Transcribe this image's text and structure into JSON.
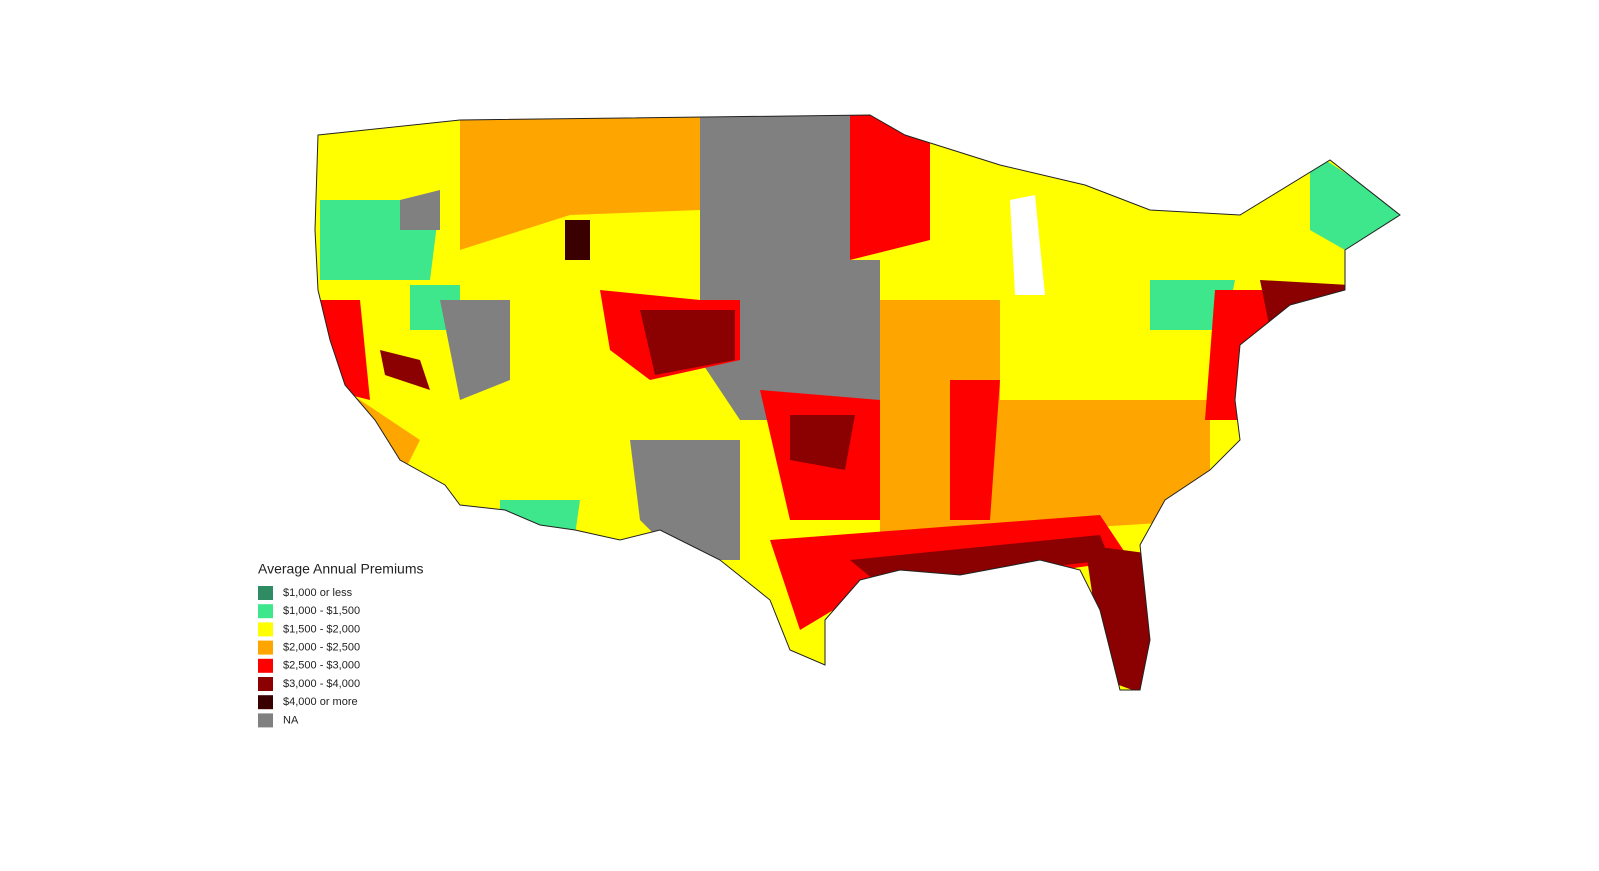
{
  "legend": {
    "title": "Average Annual Premiums",
    "items": [
      {
        "label": "$1,000 or less",
        "color": "#2e8b63"
      },
      {
        "label": "$1,000 - $1,500",
        "color": "#3ee68c"
      },
      {
        "label": "$1,500 - $2,000",
        "color": "#ffff00"
      },
      {
        "label": "$2,000 - $2,500",
        "color": "#ffa500"
      },
      {
        "label": "$2,500 - $3,000",
        "color": "#ff0000"
      },
      {
        "label": "$3,000 - $4,000",
        "color": "#8b0000"
      },
      {
        "label": "$4,000 or more",
        "color": "#3a0000"
      },
      {
        "label": "NA",
        "color": "#808080"
      }
    ]
  }
}
